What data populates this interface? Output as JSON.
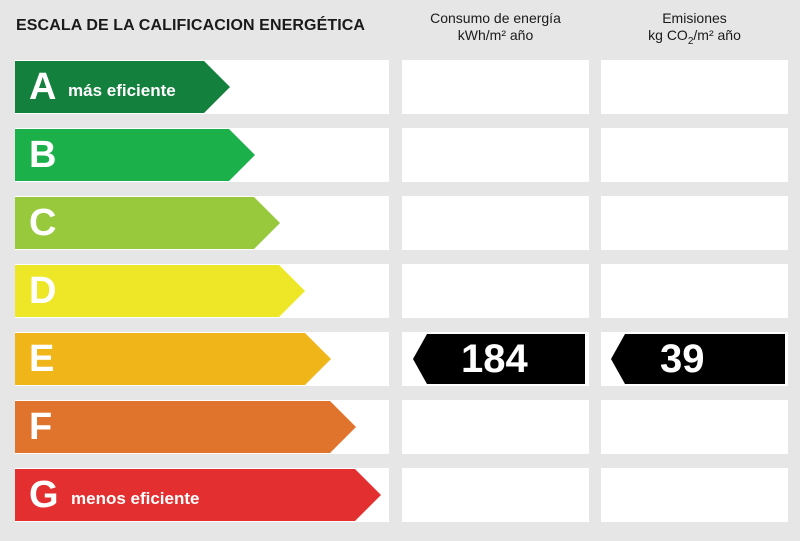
{
  "title": "ESCALA DE LA CALIFICACION ENERGÉTICA",
  "columns": {
    "consumption_line1": "Consumo de energía",
    "consumption_line2": "kWh/m² año",
    "emissions_line1": "Emisiones",
    "emissions_line2_pre": "kg CO",
    "emissions_line2_sub": "2",
    "emissions_line2_post": "/m² año"
  },
  "grades": [
    {
      "letter": "A",
      "label": "más eficiente",
      "color": "#13803d"
    },
    {
      "letter": "B",
      "label": "",
      "color": "#1cb04b"
    },
    {
      "letter": "C",
      "label": "",
      "color": "#98c93c"
    },
    {
      "letter": "D",
      "label": "",
      "color": "#ede727"
    },
    {
      "letter": "E",
      "label": "",
      "color": "#f0b619"
    },
    {
      "letter": "F",
      "label": "",
      "color": "#e0742c"
    },
    {
      "letter": "G",
      "label": "menos eficiente",
      "color": "#e32f2f"
    }
  ],
  "rating": {
    "grade": "E",
    "consumption_value": "184",
    "emissions_value": "39"
  }
}
